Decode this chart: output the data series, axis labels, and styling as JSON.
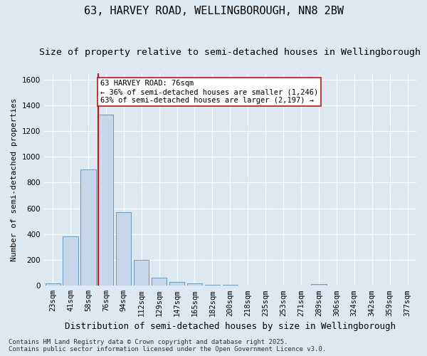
{
  "title": "63, HARVEY ROAD, WELLINGBOROUGH, NN8 2BW",
  "subtitle": "Size of property relative to semi-detached houses in Wellingborough",
  "xlabel": "Distribution of semi-detached houses by size in Wellingborough",
  "ylabel": "Number of semi-detached properties",
  "categories": [
    "23sqm",
    "41sqm",
    "58sqm",
    "76sqm",
    "94sqm",
    "112sqm",
    "129sqm",
    "147sqm",
    "165sqm",
    "182sqm",
    "200sqm",
    "218sqm",
    "235sqm",
    "253sqm",
    "271sqm",
    "289sqm",
    "306sqm",
    "324sqm",
    "342sqm",
    "359sqm",
    "377sqm"
  ],
  "values": [
    20,
    385,
    900,
    1325,
    570,
    200,
    65,
    30,
    18,
    8,
    8,
    0,
    0,
    0,
    0,
    14,
    0,
    0,
    0,
    0,
    0
  ],
  "bar_color": "#c8d8ea",
  "bar_edge_color": "#6699bb",
  "vline_index": 3,
  "vline_color": "#cc1111",
  "annotation_text": "63 HARVEY ROAD: 76sqm\n← 36% of semi-detached houses are smaller (1,246)\n63% of semi-detached houses are larger (2,197) →",
  "annotation_box_facecolor": "#ffffff",
  "annotation_box_edgecolor": "#cc1111",
  "ylim": [
    0,
    1650
  ],
  "yticks": [
    0,
    200,
    400,
    600,
    800,
    1000,
    1200,
    1400,
    1600
  ],
  "background_color": "#dde8f0",
  "plot_bg_color": "#dde8f0",
  "grid_color": "#ffffff",
  "footer": "Contains HM Land Registry data © Crown copyright and database right 2025.\nContains public sector information licensed under the Open Government Licence v3.0.",
  "title_fontsize": 11,
  "subtitle_fontsize": 9.5,
  "xlabel_fontsize": 9,
  "ylabel_fontsize": 8,
  "tick_fontsize": 7.5,
  "annotation_fontsize": 7.5,
  "footer_fontsize": 6.5
}
